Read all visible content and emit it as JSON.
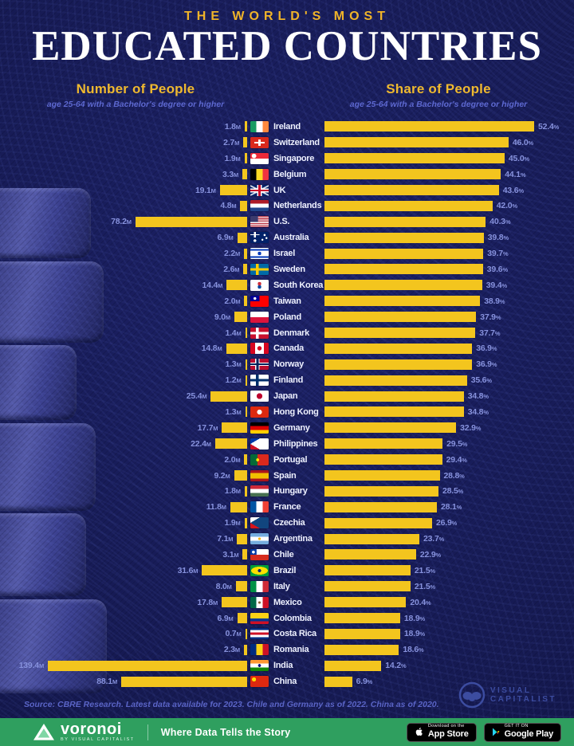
{
  "title": {
    "kicker": "THE WORLD'S MOST",
    "main": "EDUCATED COUNTRIES"
  },
  "left_header": {
    "title": "Number of People",
    "subtitle": "age 25-64 with a Bachelor's degree or higher"
  },
  "right_header": {
    "title": "Share of People",
    "subtitle": "age 25-64 with a Bachelor's degree or higher"
  },
  "chart_data": {
    "type": "bar",
    "orientation": "horizontal, mirrored dual chart (left bars grow leftward, right bars grow rightward)",
    "title": "The World's Most Educated Countries",
    "categories": [
      "Ireland",
      "Switzerland",
      "Singapore",
      "Belgium",
      "UK",
      "Netherlands",
      "U.S.",
      "Australia",
      "Israel",
      "Sweden",
      "South Korea",
      "Taiwan",
      "Poland",
      "Denmark",
      "Canada",
      "Norway",
      "Finland",
      "Japan",
      "Hong Kong",
      "Germany",
      "Philippines",
      "Portugal",
      "Spain",
      "Hungary",
      "France",
      "Czechia",
      "Argentina",
      "Chile",
      "Brazil",
      "Italy",
      "Mexico",
      "Colombia",
      "Costa Rica",
      "Romania",
      "India",
      "China"
    ],
    "series": [
      {
        "name": "Number of People age 25-64 with a Bachelor's degree or higher (millions)",
        "unit": "M",
        "values": [
          1.8,
          2.7,
          1.9,
          3.3,
          19.1,
          4.8,
          78.2,
          6.9,
          2.2,
          2.6,
          14.4,
          2.0,
          9.0,
          1.4,
          14.8,
          1.3,
          1.2,
          25.4,
          1.3,
          17.7,
          22.4,
          2.0,
          9.2,
          1.8,
          11.8,
          1.9,
          7.1,
          3.1,
          31.6,
          8.0,
          17.8,
          6.9,
          0.7,
          2.3,
          139.4,
          88.1
        ],
        "axis_max": 139.4
      },
      {
        "name": "Share of People age 25-64 with a Bachelor's degree or higher (%)",
        "unit": "%",
        "values": [
          52.4,
          46.0,
          45.0,
          44.1,
          43.6,
          42.0,
          40.3,
          39.8,
          39.7,
          39.6,
          39.4,
          38.9,
          37.9,
          37.7,
          36.9,
          36.9,
          35.6,
          34.8,
          34.8,
          32.9,
          29.5,
          29.4,
          28.8,
          28.5,
          28.1,
          26.9,
          23.7,
          22.9,
          21.5,
          21.5,
          20.4,
          18.9,
          18.9,
          18.6,
          14.2,
          6.9
        ],
        "axis_max": 52.4
      }
    ],
    "legend_position": "column headers above each bar group",
    "grid": false
  },
  "flags": [
    "linear-gradient(90deg,#169b62 33%,#fff 33% 67%,#ff883e 67%)",
    "linear-gradient(#fff,#fff) 50% 50%/14% 58% no-repeat, linear-gradient(#fff,#fff) 50% 50%/58% 14% no-repeat, #da291c",
    "radial-gradient(circle at 20% 26%, #fff 13%, transparent 14%), linear-gradient(#ed2939 50%, #fff 50%)",
    "linear-gradient(90deg,#000 33%,#fdda24 33% 67%,#ef3340 67%)",
    "linear-gradient(0deg, transparent 42%, #c8102e 42% 58%, transparent 58%), linear-gradient(90deg, transparent 43%, #c8102e 43% 57%, transparent 57%), linear-gradient(0deg, transparent 32%, #fff 32% 68%, transparent 68%), linear-gradient(90deg, transparent 36%, #fff 36% 64%, transparent 64%), linear-gradient(28deg, transparent 46%, rgba(255,255,255,.85) 46% 54%, transparent 54%), linear-gradient(-28deg, transparent 46%, rgba(255,255,255,.85) 46% 54%, transparent 54%), #012169",
    "linear-gradient(#ae1c28 33%,#fff 33% 67%,#21468b 67%)",
    "linear-gradient(#3c3b6e,#3c3b6e) 0 0/42% 54% no-repeat, repeating-linear-gradient(#b22234 0 1.1px, #fff 1.1px 2.2px)",
    "radial-gradient(circle at 78% 28%, #fff 6%, transparent 7%), radial-gradient(circle at 66% 70%, #fff 6%, transparent 7%), radial-gradient(circle at 88% 55%, #fff 5%, transparent 6%), radial-gradient(circle at 25% 78%, #fff 8%, transparent 9%), linear-gradient(0deg, transparent 40%, #fff 40% 60%, transparent 60%) 0 0/50% 50% no-repeat, linear-gradient(90deg, transparent 40%, #fff 40% 60%, transparent 60%) 0 0/50% 50% no-repeat, #012169",
    "radial-gradient(circle at 50% 50%, #0038b8 16%, transparent 17%), linear-gradient(#fff 12%, #0038b8 12% 26%, #fff 26% 74%, #0038b8 74% 88%, #fff 88%)",
    "linear-gradient(0deg, transparent 40%, #fecc02 40% 60%, transparent 60%), linear-gradient(90deg, transparent 30%, #fecc02 30% 46%, transparent 46%), #006aa7",
    "radial-gradient(circle at 50% 36%, #cd2e3a 15%, transparent 16%), radial-gradient(circle at 50% 64%, #0047a0 15%, transparent 16%), #fff",
    "radial-gradient(circle at 25% 25%, #fff 8%, transparent 9%), linear-gradient(#000095,#000095) 0 0/50% 50% no-repeat, #fe0000",
    "linear-gradient(#fff 50%, #dc143c 50%)",
    "linear-gradient(0deg, transparent 40%, #fff 40% 60%, transparent 60%), linear-gradient(90deg, transparent 30%, #fff 30% 46%, transparent 46%), #c8102e",
    "radial-gradient(circle at 50% 50%, #d80621 20%, transparent 21%), linear-gradient(90deg, #d80621 27%, #fff 27% 73%, #d80621 73%)",
    "linear-gradient(0deg, transparent 42%, #00205b 42% 58%, transparent 58%), linear-gradient(90deg, transparent 33%, #00205b 33% 45%, transparent 45%), linear-gradient(0deg, transparent 34%, #fff 34% 66%, transparent 66%), linear-gradient(90deg, transparent 27%, #fff 27% 51%, transparent 51%), #ba0c2f",
    "linear-gradient(0deg, transparent 40%, #002f6c 40% 60%, transparent 60%), linear-gradient(90deg, transparent 30%, #002f6c 30% 46%, transparent 46%), #fff",
    "radial-gradient(circle at 50% 50%, #bc002d 26%, transparent 27%), #fff",
    "radial-gradient(circle at 50% 50%, #fff 22%, transparent 23%), #de2910",
    "linear-gradient(#000 33%, #dd0000 33% 67%, #ffce00 67%)",
    "conic-gradient(from 60deg at 0% 50%, #fff 0 60deg, transparent 60deg), linear-gradient(#0038a8 50%, #ce1126 50%)",
    "radial-gradient(circle at 40% 50%, #ffe900 12%, transparent 13%), linear-gradient(90deg, #046a38 40%, #da291c 40%)",
    "linear-gradient(#aa151b 25%, #f1bf00 25% 75%, #aa151b 75%)",
    "linear-gradient(#ce2939 33%, #fff 33% 67%, #477050 67%)",
    "linear-gradient(90deg, #0055a4 33%, #fff 33% 67%, #ef4135 67%)",
    "conic-gradient(from 60deg at 0% 50%, #11457e 0 60deg, transparent 60deg), linear-gradient(#fff 50%, #d7141a 50%)",
    "radial-gradient(circle at 50% 50%, #f6b40e 12%, transparent 13%), linear-gradient(#74acdf 33%, #fff 33% 67%, #74acdf 67%)",
    "radial-gradient(circle at 17% 26%, #fff 8%, transparent 9%), linear-gradient(#0039a6,#0039a6) 0 0/34% 50% no-repeat, linear-gradient(#fff 50%, #d52b1e 50%)",
    "radial-gradient(circle at 50% 50%, #002776 15%, transparent 16%), radial-gradient(46% 36% at 50% 50%, #fedf00 97%, transparent 100%), #009c3b",
    "linear-gradient(90deg, #009246 33%, #fff 33% 67%, #ce2b37 67%)",
    "radial-gradient(circle at 50% 50%, #8c6239 11%, transparent 12%), linear-gradient(90deg, #006847 33%, #fff 33% 67%, #ce1126 67%)",
    "linear-gradient(#fcd116 50%, #003893 50% 75%, #ce1126 75%)",
    "linear-gradient(#002b7f 18%, #fff 18% 38%, #ce1126 38% 62%, #fff 62% 82%, #002b7f 82%)",
    "linear-gradient(90deg, #002b7f 33%, #fcd116 33% 67%, #ce1126 67%)",
    "radial-gradient(circle at 50% 50%, #000080 13%, transparent 14%), linear-gradient(#ff9933 33%, #fff 33% 67%, #138808 67%)",
    "radial-gradient(circle at 20% 32%, #ffde00 12%, transparent 13%), #de2910"
  ],
  "source": "Source: CBRE Research. Latest data available for 2023. Chile and Germany as of 2022. China as of 2020.",
  "vc_logo": {
    "line1": "VISUAL",
    "line2": "CAPITALIST"
  },
  "footer": {
    "brand": "voronoi",
    "brand_sub": "BY VISUAL CAPITALIST",
    "tagline": "Where Data Tells the Story",
    "app_store": {
      "line1": "Download on the",
      "line2": "App Store"
    },
    "google_play": {
      "line1": "GET IT ON",
      "line2": "Google Play"
    }
  },
  "colors": {
    "background": "#161a52",
    "bar": "#f3c51e",
    "value_text": "#8792dd",
    "country_text": "#eef1ff",
    "header_gold": "#efb92f",
    "kicker_gold": "#f0b429",
    "subtitle_blue": "#5d68d0",
    "source_blue": "#5a64c6",
    "footer_green": "#2f9f5f",
    "title_white": "#ffffff"
  }
}
